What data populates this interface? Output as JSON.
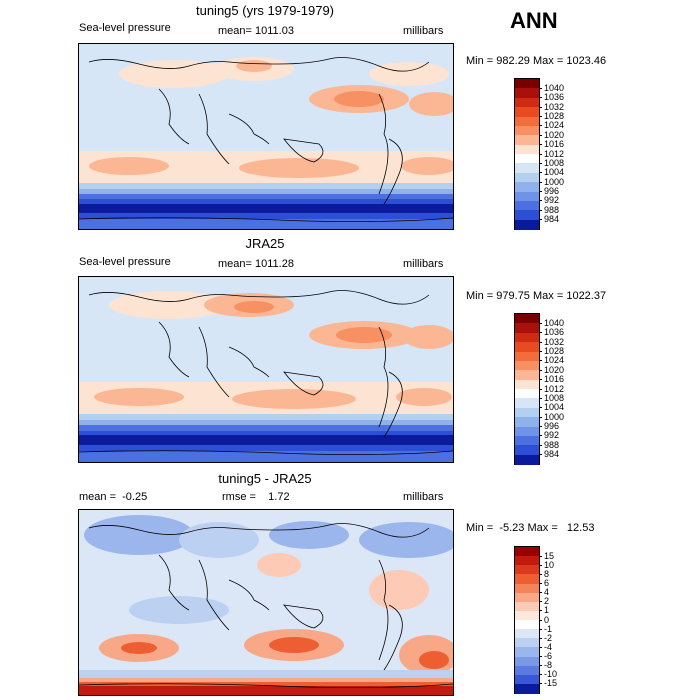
{
  "season": "ANN",
  "panels": [
    {
      "title": "tuning5 (yrs 1979-1979)",
      "variable": "Sea-level pressure",
      "mean_label": "mean=",
      "mean_value": "1011.03",
      "units": "millibars",
      "min_label": "Min =",
      "min_value": "982.29",
      "max_label": "Max =",
      "max_value": "1023.46",
      "colorbar": {
        "levels": [
          "1040",
          "1036",
          "1032",
          "1028",
          "1024",
          "1020",
          "1016",
          "1012",
          "1008",
          "1004",
          "1000",
          "996",
          "992",
          "988",
          "984"
        ],
        "colors": [
          "#7a0000",
          "#a8100c",
          "#cf2a12",
          "#e84b21",
          "#f26c3c",
          "#f79062",
          "#fbb794",
          "#fde4d2",
          "#ffffff",
          "#d6e6f7",
          "#b4d0f1",
          "#8fb1ec",
          "#6f93e6",
          "#4d70e0",
          "#2c4fd5",
          "#0a1a9a"
        ]
      },
      "map_style": "clim1"
    },
    {
      "title": "JRA25",
      "variable": "Sea-level pressure",
      "mean_label": "mean=",
      "mean_value": "1011.28",
      "units": "millibars",
      "min_label": "Min =",
      "min_value": "979.75",
      "max_label": "Max =",
      "max_value": "1022.37",
      "colorbar": {
        "levels": [
          "1040",
          "1036",
          "1032",
          "1028",
          "1024",
          "1020",
          "1016",
          "1012",
          "1008",
          "1004",
          "1000",
          "996",
          "992",
          "988",
          "984"
        ],
        "colors": [
          "#7a0000",
          "#a8100c",
          "#cf2a12",
          "#e84b21",
          "#f26c3c",
          "#f79062",
          "#fbb794",
          "#fde4d2",
          "#ffffff",
          "#d6e6f7",
          "#b4d0f1",
          "#8fb1ec",
          "#6f93e6",
          "#4d70e0",
          "#2c4fd5",
          "#0a1a9a"
        ]
      },
      "map_style": "clim2"
    },
    {
      "title": "tuning5 - JRA25",
      "variable": "",
      "mean_label": "mean =",
      "mean_value": "-0.25",
      "rmse_label": "rmse =",
      "rmse_value": "1.72",
      "units": "millibars",
      "min_label": "Min =",
      "min_value": "-5.23",
      "max_label": "Max =",
      "max_value": "12.53",
      "colorbar": {
        "levels": [
          "15",
          "10",
          "8",
          "6",
          "4",
          "2",
          "1",
          "0",
          "-1",
          "-2",
          "-4",
          "-6",
          "-8",
          "-10",
          "-15"
        ],
        "colors": [
          "#9a0000",
          "#c21a0c",
          "#dc3a1c",
          "#ee5e33",
          "#f5845a",
          "#f9a887",
          "#fccab5",
          "#fde8de",
          "#ffffff",
          "#dbe7f7",
          "#bcd1f2",
          "#9bb6ed",
          "#7b98e7",
          "#5c7be0",
          "#3858d8",
          "#0c1a9c"
        ]
      },
      "map_style": "diff"
    }
  ]
}
